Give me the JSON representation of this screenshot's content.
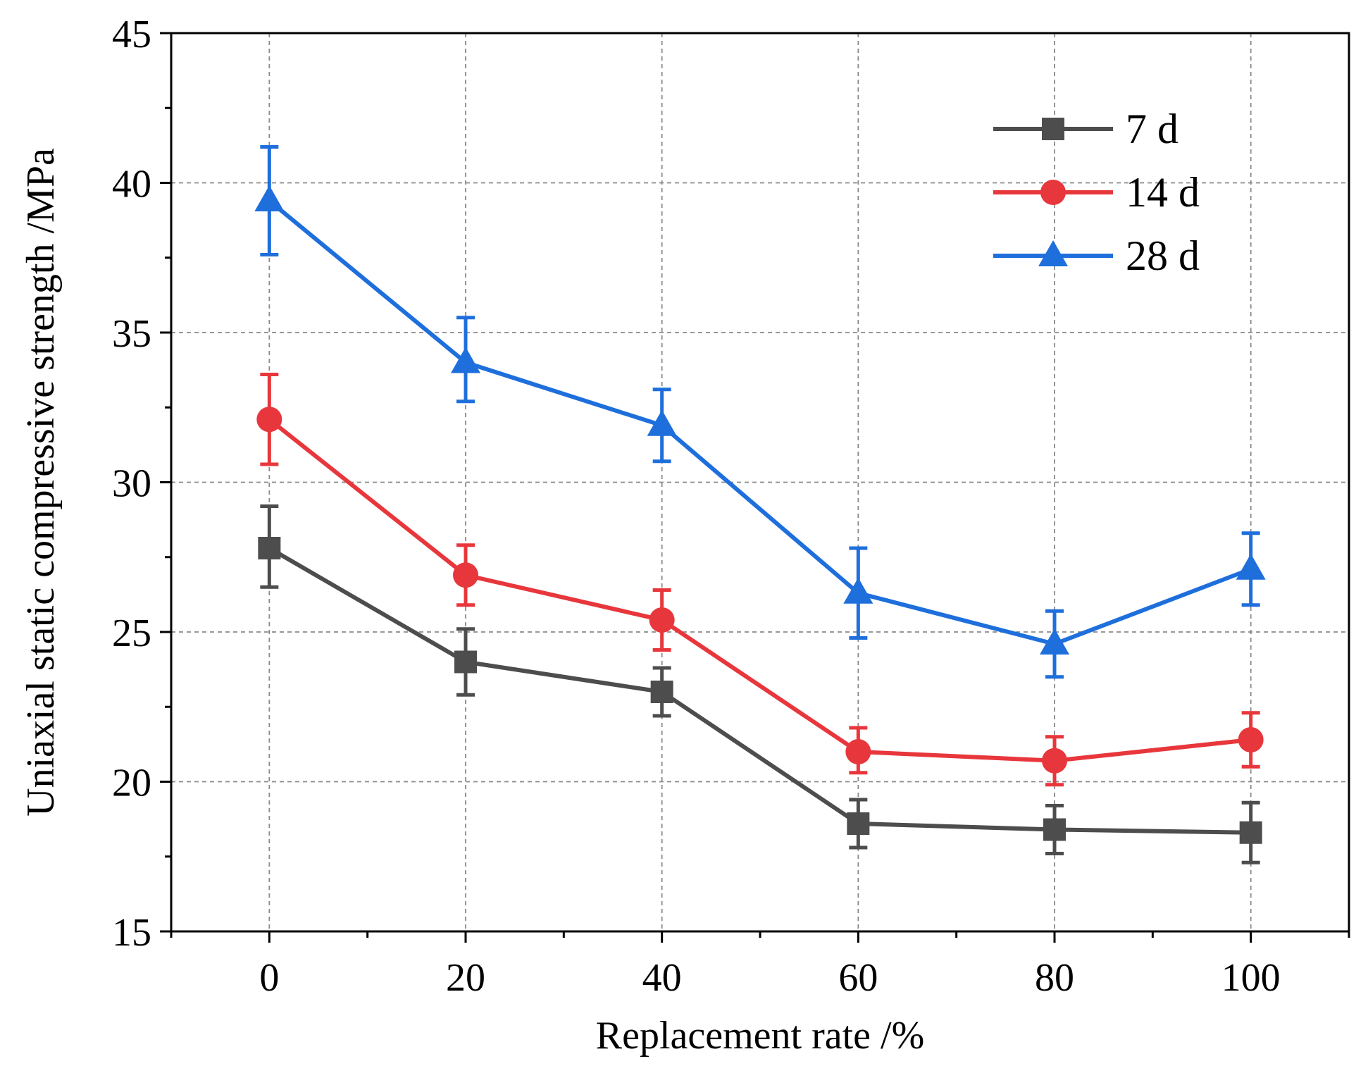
{
  "chart_data": {
    "type": "line",
    "title": "",
    "xlabel": "Replacement rate /%",
    "ylabel": "Uniaxial static compressive strength /MPa",
    "x": [
      0,
      20,
      40,
      60,
      80,
      100
    ],
    "xlim": [
      -10,
      110
    ],
    "ylim": [
      15,
      45
    ],
    "xticks": [
      0,
      20,
      40,
      60,
      80,
      100
    ],
    "xtick_labels": [
      "0",
      "20",
      "40",
      "60",
      "80",
      "100"
    ],
    "yticks": [
      15,
      20,
      25,
      30,
      35,
      40,
      45
    ],
    "ytick_labels": [
      "15",
      "20",
      "25",
      "30",
      "35",
      "40",
      "45"
    ],
    "grid": true,
    "legend_position": "top-right",
    "series": [
      {
        "name": "7 d",
        "color": "#4d4d4d",
        "marker": "square",
        "values": [
          27.8,
          24.0,
          23.0,
          18.6,
          18.4,
          18.3
        ],
        "error_upper": [
          29.2,
          25.1,
          23.8,
          19.4,
          19.2,
          19.3
        ],
        "error_lower": [
          26.5,
          22.9,
          22.2,
          17.8,
          17.6,
          17.3
        ]
      },
      {
        "name": "14 d",
        "color": "#e8373c",
        "marker": "circle",
        "values": [
          32.1,
          26.9,
          25.4,
          21.0,
          20.7,
          21.4
        ],
        "error_upper": [
          33.6,
          27.9,
          26.4,
          21.8,
          21.5,
          22.3
        ],
        "error_lower": [
          30.6,
          25.9,
          24.4,
          20.3,
          19.9,
          20.5
        ]
      },
      {
        "name": "28 d",
        "color": "#1e6fdc",
        "marker": "triangle",
        "values": [
          39.4,
          34.0,
          31.9,
          26.3,
          24.6,
          27.1
        ],
        "error_upper": [
          41.2,
          35.5,
          33.1,
          27.8,
          25.7,
          28.3
        ],
        "error_lower": [
          37.6,
          32.7,
          30.7,
          24.8,
          23.5,
          25.9
        ]
      }
    ]
  }
}
